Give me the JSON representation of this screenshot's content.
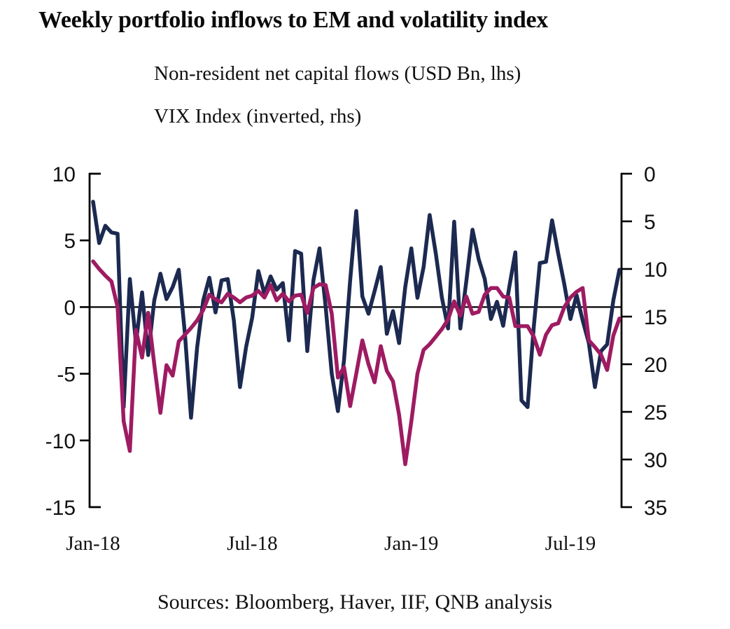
{
  "title": "Weekly portfolio inflows to EM and volatility index",
  "legend": [
    "Non-resident net capital flows (USD Bn, lhs)",
    "VIX Index (inverted, rhs)"
  ],
  "source_note": "Sources: Bloomberg, Haver, IIF, QNB analysis",
  "colors": {
    "flows_line": "#1c2950",
    "vix_line": "#9e1b62",
    "axis": "#000000",
    "background": "#ffffff"
  },
  "chart_data": {
    "type": "line",
    "title": "Weekly portfolio inflows to EM and volatility index",
    "x_tick_labels": [
      "Jan-18",
      "Jul-18",
      "Jan-19",
      "Jul-19"
    ],
    "x_tick_weeks": [
      0,
      26,
      52,
      78
    ],
    "left_axis": {
      "label": "USD Bn",
      "ticks": [
        10,
        5,
        0,
        -5,
        -10,
        -15
      ],
      "range": [
        -15,
        10
      ]
    },
    "right_axis": {
      "label": "VIX Index",
      "ticks": [
        0,
        5,
        10,
        15,
        20,
        25,
        30,
        35
      ],
      "range": [
        0,
        35
      ],
      "inverted": true
    },
    "grid": "zero-line-only",
    "legend_position": "top-left",
    "x": [
      "2018-01-05",
      "2018-01-12",
      "2018-01-19",
      "2018-01-26",
      "2018-02-02",
      "2018-02-09",
      "2018-02-16",
      "2018-02-23",
      "2018-03-02",
      "2018-03-09",
      "2018-03-16",
      "2018-03-23",
      "2018-03-30",
      "2018-04-06",
      "2018-04-13",
      "2018-04-20",
      "2018-04-27",
      "2018-05-04",
      "2018-05-11",
      "2018-05-18",
      "2018-05-25",
      "2018-06-01",
      "2018-06-08",
      "2018-06-15",
      "2018-06-22",
      "2018-06-29",
      "2018-07-06",
      "2018-07-13",
      "2018-07-20",
      "2018-07-27",
      "2018-08-03",
      "2018-08-10",
      "2018-08-17",
      "2018-08-24",
      "2018-08-31",
      "2018-09-07",
      "2018-09-14",
      "2018-09-21",
      "2018-09-28",
      "2018-10-05",
      "2018-10-12",
      "2018-10-19",
      "2018-10-26",
      "2018-11-02",
      "2018-11-09",
      "2018-11-16",
      "2018-11-23",
      "2018-11-30",
      "2018-12-07",
      "2018-12-14",
      "2018-12-21",
      "2018-12-28",
      "2019-01-04",
      "2019-01-11",
      "2019-01-18",
      "2019-01-25",
      "2019-02-01",
      "2019-02-08",
      "2019-02-15",
      "2019-02-22",
      "2019-03-01",
      "2019-03-08",
      "2019-03-15",
      "2019-03-22",
      "2019-03-29",
      "2019-04-05",
      "2019-04-12",
      "2019-04-19",
      "2019-04-26",
      "2019-05-03",
      "2019-05-10",
      "2019-05-17",
      "2019-05-24",
      "2019-05-31",
      "2019-06-07",
      "2019-06-14",
      "2019-06-21",
      "2019-06-28",
      "2019-07-05",
      "2019-07-12",
      "2019-07-19",
      "2019-07-26",
      "2019-08-02",
      "2019-08-09",
      "2019-08-16",
      "2019-08-23",
      "2019-08-30"
    ],
    "series": [
      {
        "name": "Non-resident net capital flows (USD Bn, lhs)",
        "axis": "left",
        "color": "#1c2950",
        "values": [
          7.9,
          4.8,
          6.1,
          5.6,
          5.5,
          -7.5,
          2.1,
          -2.7,
          1.1,
          -3.6,
          0.5,
          2.5,
          0.6,
          1.5,
          2.8,
          -2.0,
          -8.3,
          -3.0,
          0.5,
          2.2,
          -0.4,
          2.0,
          2.1,
          -1.0,
          -6.0,
          -3.0,
          -0.8,
          2.7,
          1.0,
          2.3,
          1.3,
          1.8,
          -2.5,
          4.2,
          4.0,
          -3.3,
          2.0,
          4.4,
          0.0,
          -5.0,
          -7.8,
          -4.0,
          2.0,
          7.2,
          0.8,
          -0.5,
          1.2,
          3.0,
          -2.0,
          -0.3,
          -2.7,
          1.5,
          4.4,
          0.7,
          3.0,
          6.9,
          4.0,
          0.7,
          -1.6,
          6.4,
          -1.6,
          2.0,
          5.8,
          3.6,
          2.1,
          -0.9,
          0.4,
          -1.4,
          1.5,
          4.1,
          -7.0,
          -7.5,
          -1.5,
          3.3,
          3.4,
          6.5,
          4.0,
          1.7,
          -0.9,
          0.9,
          -1.0,
          -2.7,
          -6.0,
          -3.3,
          -2.8,
          0.5,
          2.8
        ]
      },
      {
        "name": "VIX Index (inverted, rhs)",
        "axis": "right",
        "color": "#9e1b62",
        "values": [
          9.2,
          10.0,
          10.7,
          11.3,
          14.0,
          26.0,
          29.1,
          16.4,
          19.3,
          14.6,
          20.0,
          25.1,
          20.1,
          21.2,
          17.6,
          16.9,
          16.2,
          15.4,
          14.3,
          12.7,
          13.2,
          13.5,
          12.6,
          13.0,
          13.5,
          13.0,
          12.8,
          12.3,
          13.0,
          11.7,
          13.3,
          12.6,
          13.4,
          12.8,
          12.7,
          14.6,
          12.0,
          11.6,
          11.7,
          14.7,
          21.4,
          20.3,
          24.4,
          21.0,
          17.5,
          20.0,
          21.9,
          18.1,
          20.7,
          21.8,
          25.3,
          30.5,
          26.0,
          21.0,
          18.5,
          17.9,
          17.1,
          16.3,
          15.3,
          13.4,
          14.9,
          12.9,
          14.7,
          14.5,
          12.7,
          12.0,
          12.0,
          12.9,
          13.0,
          16.0,
          16.0,
          16.0,
          17.1,
          19.0,
          16.9,
          15.9,
          15.7,
          14.0,
          13.0,
          12.4,
          12.0,
          17.5,
          18.2,
          19.0,
          20.6,
          17.0,
          15.2
        ]
      }
    ]
  }
}
